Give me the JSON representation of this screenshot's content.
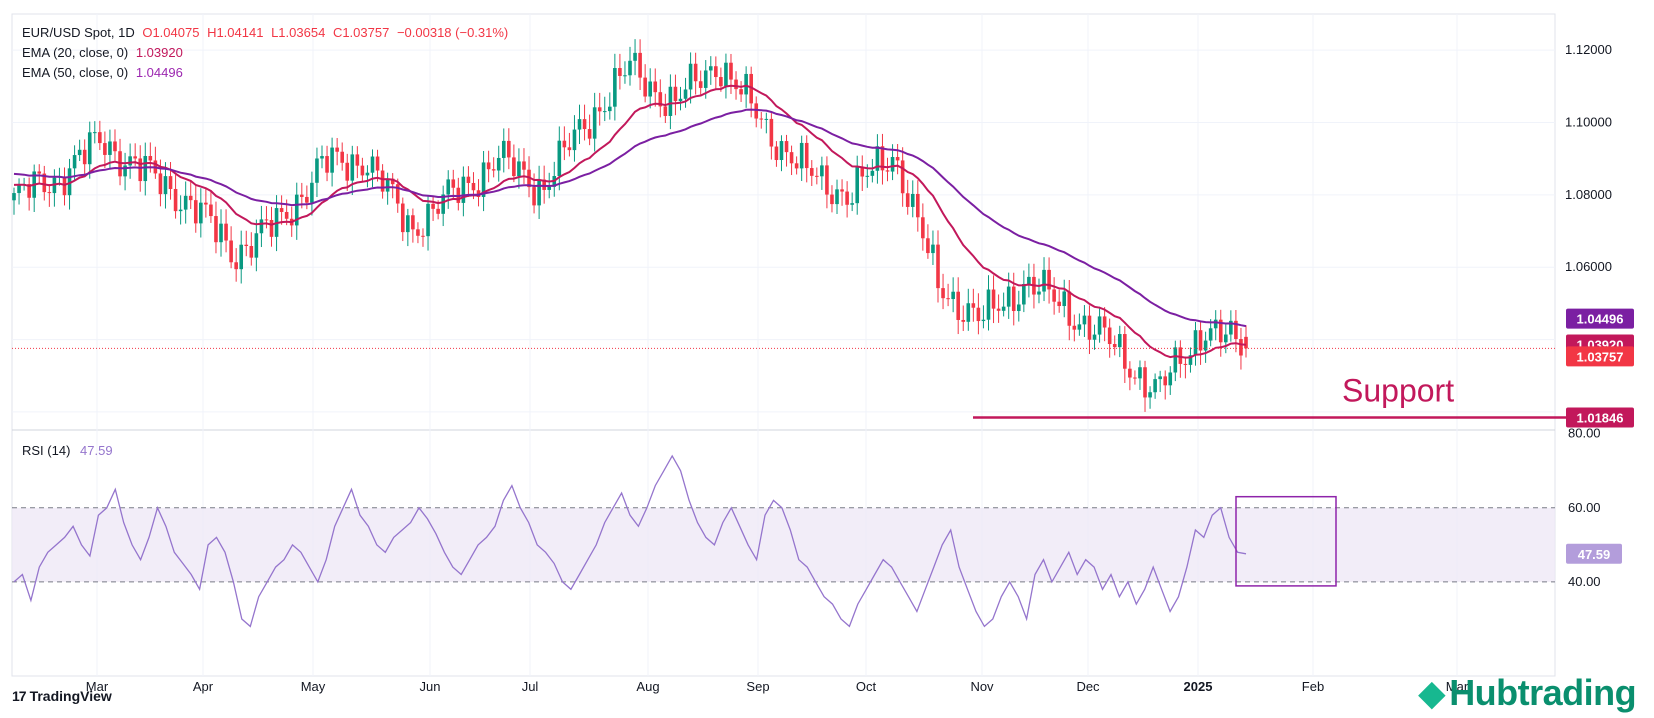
{
  "header": {
    "symbol": "EUR/USD Spot, 1D",
    "open": "O1.04075",
    "high": "H1.04141",
    "low": "L1.03654",
    "close": "C1.03757",
    "change": "−0.00318 (−0.31%)",
    "ema20_label": "EMA (20, close, 0)",
    "ema20_value": "1.03920",
    "ema50_label": "EMA (50, close, 0)",
    "ema50_value": "1.04496"
  },
  "rsi": {
    "label": "RSI (14)",
    "value": "47.59"
  },
  "branding": {
    "tradingview": "TradingView",
    "hub": "Hubtrading"
  },
  "colors": {
    "up": "#089981",
    "down": "#f23645",
    "ema20": "#c2185b",
    "ema50": "#7b1fa2",
    "support": "#c2185b",
    "rsi": "#9575cd",
    "rsi_band": "#ede7f6"
  },
  "chart_data": [
    {
      "type": "candlestick",
      "title": "EUR/USD Spot, 1D",
      "x_tick_labels": [
        "Mar",
        "Apr",
        "May",
        "Jun",
        "Jul",
        "Aug",
        "Sep",
        "Oct",
        "Nov",
        "Dec",
        "2025",
        "Feb",
        "Mar"
      ],
      "y_tick_labels": [
        "1.12000",
        "1.10000",
        "1.08000",
        "1.06000"
      ],
      "ylim": [
        1.015,
        1.13
      ],
      "series": [
        {
          "name": "EMA (20, close, 0)",
          "last": 1.0392
        },
        {
          "name": "EMA (50, close, 0)",
          "last": 1.04496
        }
      ],
      "close_path": [
        {
          "m": "Feb",
          "v": 1.079
        },
        {
          "m": "Feb",
          "v": 1.085
        },
        {
          "m": "Mar",
          "v": 1.095
        },
        {
          "m": "Mar",
          "v": 1.086
        },
        {
          "m": "Apr",
          "v": 1.078
        },
        {
          "m": "Apr",
          "v": 1.064
        },
        {
          "m": "May",
          "v": 1.072
        },
        {
          "m": "May",
          "v": 1.088
        },
        {
          "m": "Jun",
          "v": 1.09
        },
        {
          "m": "Jun",
          "v": 1.071
        },
        {
          "m": "Jul",
          "v": 1.08
        },
        {
          "m": "Jul",
          "v": 1.09
        },
        {
          "m": "Aug",
          "v": 1.082
        },
        {
          "m": "Aug",
          "v": 1.1
        },
        {
          "m": "Sep",
          "v": 1.115
        },
        {
          "m": "Sep",
          "v": 1.105
        },
        {
          "m": "Sep",
          "v": 1.117
        },
        {
          "m": "Oct",
          "v": 1.1
        },
        {
          "m": "Oct",
          "v": 1.086
        },
        {
          "m": "Nov",
          "v": 1.08
        },
        {
          "m": "Nov",
          "v": 1.092
        },
        {
          "m": "Nov",
          "v": 1.055
        },
        {
          "m": "Dec",
          "v": 1.045
        },
        {
          "m": "Dec",
          "v": 1.056
        },
        {
          "m": "Dec",
          "v": 1.048
        },
        {
          "m": "2025",
          "v": 1.038
        },
        {
          "m": "2025",
          "v": 1.025
        },
        {
          "m": "Jan",
          "v": 1.043
        },
        {
          "m": "Feb",
          "v": 1.0376
        }
      ],
      "annotations": [
        {
          "text": "Support",
          "value": 1.01846
        }
      ],
      "price_labels": [
        {
          "text": "1.04496",
          "value": 1.04496,
          "color": "#7b1fa2"
        },
        {
          "text": "1.03920",
          "value": 1.0392,
          "color": "#c2185b"
        },
        {
          "text": "1.03757",
          "value": 1.03757,
          "color": "#f23645"
        },
        {
          "text": "1.01846",
          "value": 1.01846,
          "color": "#c2185b"
        }
      ]
    },
    {
      "type": "line",
      "title": "RSI (14)",
      "y_tick_labels": [
        "80.00",
        "60.00",
        "40.00"
      ],
      "ylim": [
        20,
        81
      ],
      "band": [
        40,
        60
      ],
      "values": [
        40,
        42,
        35,
        44,
        48,
        50,
        52,
        55,
        50,
        47,
        58,
        60,
        65,
        56,
        50,
        46,
        52,
        60,
        55,
        48,
        45,
        42,
        38,
        50,
        52,
        48,
        40,
        30,
        28,
        36,
        40,
        44,
        46,
        50,
        48,
        44,
        40,
        46,
        55,
        60,
        65,
        58,
        55,
        50,
        48,
        52,
        54,
        56,
        60,
        57,
        53,
        48,
        44,
        42,
        46,
        50,
        52,
        55,
        62,
        66,
        60,
        56,
        50,
        48,
        45,
        40,
        38,
        42,
        46,
        50,
        56,
        60,
        64,
        58,
        55,
        60,
        66,
        70,
        74,
        70,
        62,
        56,
        52,
        50,
        56,
        60,
        55,
        50,
        46,
        58,
        62,
        60,
        54,
        46,
        44,
        40,
        36,
        34,
        30,
        28,
        34,
        38,
        42,
        46,
        44,
        40,
        36,
        32,
        38,
        44,
        50,
        54,
        44,
        38,
        32,
        28,
        30,
        36,
        40,
        36,
        30,
        42,
        46,
        40,
        44,
        48,
        42,
        46,
        44,
        38,
        42,
        36,
        40,
        34,
        38,
        44,
        38,
        32,
        36,
        44,
        54,
        52,
        58,
        60,
        52,
        48,
        47.59
      ],
      "value_label": "47.59"
    }
  ]
}
